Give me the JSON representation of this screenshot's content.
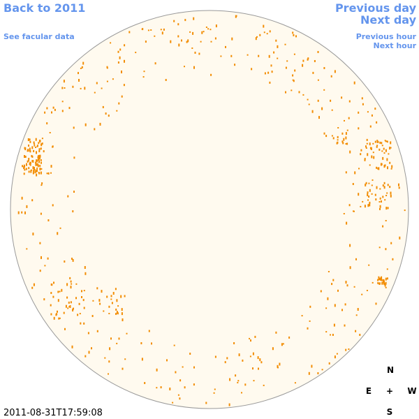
{
  "links": {
    "back_to_year": "Back to 2011",
    "see_facular_data": "See facular data",
    "previous_day": "Previous day",
    "next_day": "Next day",
    "previous_hour": "Previous hour",
    "next_hour": "Next hour"
  },
  "timestamp": "2011-08-31T17:59:08",
  "compass": {
    "north": "N",
    "east": "E",
    "center": "+",
    "west": "W",
    "south": "S"
  }
}
